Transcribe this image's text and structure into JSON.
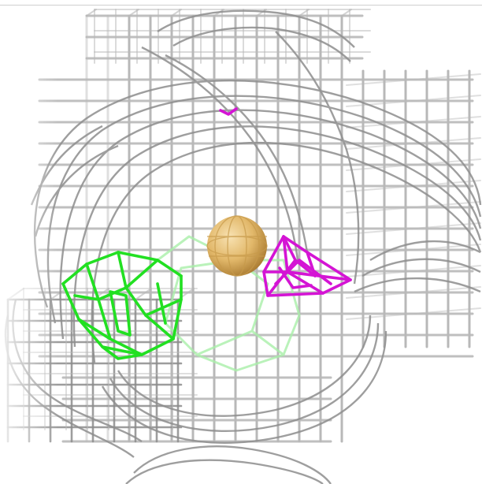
{
  "scene": {
    "background": "#ffffff",
    "lattice_color": "#b8b8b8",
    "lattice_shadow": "#8c8c8c",
    "mesh_color": "#9a9a9a",
    "green_structure_color": "#22ee22",
    "green_structure_faint": "#9bef9b",
    "magenta_structure_color": "#dd11dd",
    "sphere_color": "#e8c070",
    "sphere_highlight": "#f6dca8",
    "sphere_shadow": "#b88a3a"
  }
}
